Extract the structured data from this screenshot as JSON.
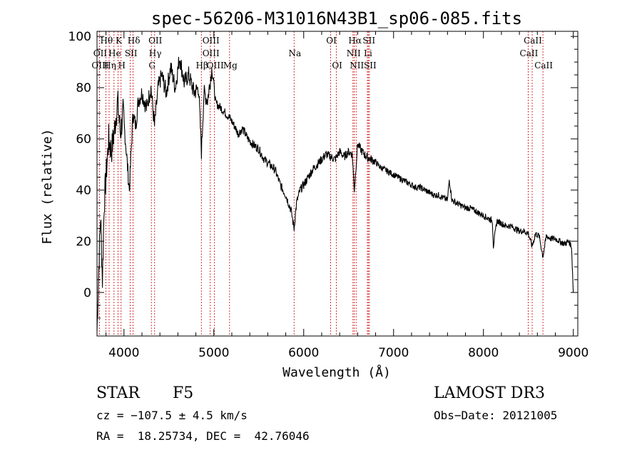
{
  "chart_data": {
    "type": "line",
    "title": "spec-56206-M31016N43B1_sp06-085.fits",
    "xlabel": "Wavelength (Å)",
    "ylabel": "Flux (relative)",
    "xlim": [
      3700,
      9050
    ],
    "ylim": [
      -17,
      102
    ],
    "xticks": [
      4000,
      5000,
      6000,
      7000,
      8000,
      9000
    ],
    "yticks": [
      0,
      20,
      40,
      60,
      80,
      100
    ],
    "xtick_labels": [
      "4000",
      "5000",
      "6000",
      "7000",
      "8000",
      "9000"
    ],
    "ytick_labels": [
      "0",
      "20",
      "40",
      "60",
      "80",
      "100"
    ],
    "grid": false,
    "series": [
      {
        "name": "flux",
        "x": [
          3700,
          3720,
          3740,
          3760,
          3780,
          3800,
          3830,
          3860,
          3900,
          3930,
          3960,
          3990,
          4020,
          4060,
          4100,
          4130,
          4160,
          4200,
          4250,
          4300,
          4340,
          4380,
          4420,
          4470,
          4520,
          4570,
          4620,
          4670,
          4720,
          4780,
          4830,
          4862,
          4890,
          4930,
          4980,
          5020,
          5080,
          5130,
          5180,
          5230,
          5270,
          5320,
          5380,
          5430,
          5500,
          5560,
          5620,
          5680,
          5740,
          5800,
          5860,
          5893,
          5920,
          5960,
          6000,
          6050,
          6100,
          6150,
          6200,
          6250,
          6300,
          6350,
          6400,
          6450,
          6500,
          6540,
          6563,
          6600,
          6650,
          6700,
          6750,
          6800,
          6850,
          6900,
          6950,
          7000,
          7050,
          7100,
          7150,
          7200,
          7250,
          7300,
          7350,
          7400,
          7450,
          7500,
          7550,
          7600,
          7620,
          7650,
          7700,
          7750,
          7800,
          7850,
          7900,
          7950,
          8000,
          8050,
          8100,
          8110,
          8150,
          8200,
          8250,
          8300,
          8350,
          8400,
          8450,
          8500,
          8542,
          8580,
          8620,
          8662,
          8700,
          8750,
          8800,
          8850,
          8900,
          8950,
          8980,
          9000
        ],
        "y": [
          -15,
          10,
          30,
          5,
          35,
          45,
          60,
          55,
          65,
          75,
          62,
          70,
          58,
          40,
          70,
          65,
          75,
          78,
          72,
          80,
          65,
          80,
          85,
          78,
          88,
          80,
          92,
          82,
          85,
          78,
          80,
          55,
          78,
          75,
          88,
          74,
          72,
          70,
          68,
          65,
          62,
          64,
          60,
          58,
          56,
          52,
          50,
          48,
          42,
          38,
          32,
          25,
          35,
          40,
          42,
          45,
          48,
          50,
          52,
          54,
          53,
          52,
          55,
          53,
          55,
          54,
          40,
          58,
          55,
          53,
          52,
          51,
          49,
          48,
          47,
          46,
          45,
          44,
          43,
          42,
          41,
          41,
          40,
          39,
          38,
          38,
          37,
          36,
          44,
          36,
          35,
          34,
          33,
          33,
          32,
          31,
          30,
          29,
          28,
          18,
          28,
          27,
          26,
          26,
          25,
          24,
          24,
          23,
          18,
          23,
          22,
          14,
          22,
          21,
          21,
          20,
          19,
          20,
          18,
          0
        ]
      }
    ],
    "lines": [
      {
        "label": "Hθ",
        "x": 3798,
        "row": 0
      },
      {
        "label": "K",
        "x": 3934,
        "row": 0
      },
      {
        "label": "Hδ",
        "x": 4102,
        "row": 0
      },
      {
        "label": "OII",
        "x": 4341,
        "row": 0
      },
      {
        "label": "OIII",
        "x": 4960,
        "row": 0
      },
      {
        "label": "OI",
        "x": 6300,
        "row": 0
      },
      {
        "label": "Hα",
        "x": 6563,
        "row": 0
      },
      {
        "label": "SII",
        "x": 6718,
        "row": 0
      },
      {
        "label": "CaII",
        "x": 8542,
        "row": 0
      },
      {
        "label": "OII",
        "x": 3727,
        "row": 1
      },
      {
        "label": "He",
        "x": 3889,
        "row": 1
      },
      {
        "label": "SII",
        "x": 4070,
        "row": 1
      },
      {
        "label": "Hγ",
        "x": 4340,
        "row": 1
      },
      {
        "label": "OIII",
        "x": 4960,
        "row": 1
      },
      {
        "label": "Na",
        "x": 5893,
        "row": 1
      },
      {
        "label": "NII",
        "x": 6548,
        "row": 1
      },
      {
        "label": "Li",
        "x": 6708,
        "row": 1
      },
      {
        "label": "CaII",
        "x": 8498,
        "row": 1
      },
      {
        "label": "OIII",
        "x": 3727,
        "row": 2
      },
      {
        "label": "Hη",
        "x": 3835,
        "row": 2
      },
      {
        "label": "H",
        "x": 3968,
        "row": 2
      },
      {
        "label": "G",
        "x": 4305,
        "row": 2
      },
      {
        "label": "Hβ",
        "x": 4861,
        "row": 2
      },
      {
        "label": "OIII",
        "x": 5007,
        "row": 2
      },
      {
        "label": "Mg",
        "x": 5175,
        "row": 2
      },
      {
        "label": "OI",
        "x": 6364,
        "row": 2
      },
      {
        "label": "NII",
        "x": 6583,
        "row": 2
      },
      {
        "label": "SII",
        "x": 6731,
        "row": 2
      },
      {
        "label": "CaII",
        "x": 8662,
        "row": 2
      }
    ],
    "marker_positions": [
      3727,
      3798,
      3835,
      3889,
      3934,
      3968,
      4070,
      4102,
      4305,
      4341,
      4861,
      4960,
      5007,
      5175,
      5893,
      6300,
      6364,
      6548,
      6563,
      6583,
      6708,
      6718,
      6731,
      8498,
      8542,
      8662
    ]
  },
  "info": {
    "class_label": "STAR",
    "subclass": "F5",
    "survey": "LAMOST DR3",
    "cz": "cz = −107.5 ± 4.5 km/s",
    "obs_date": "Obs−Date: 20121005",
    "coords": "RA =  18.25734, DEC =  42.76046"
  },
  "colors": {
    "axis": "#000000",
    "spectrum": "#000000",
    "markers": "#cc0000"
  }
}
